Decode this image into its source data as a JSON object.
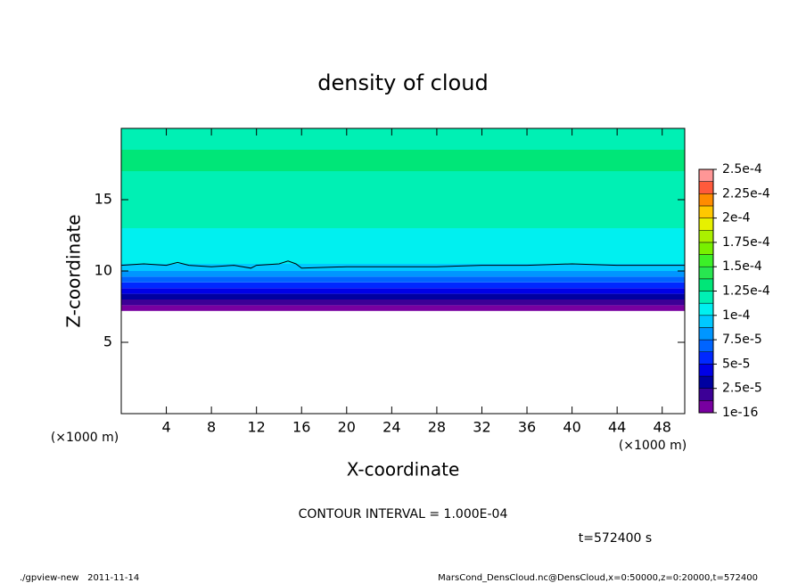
{
  "chart_data": {
    "type": "contour",
    "title": "density of cloud",
    "x_label": "X-coordinate",
    "y_label": "Z-coordinate",
    "x_unit": "(×1000 m)",
    "y_unit": "(×1000 m)",
    "xlim": [
      0,
      50
    ],
    "ylim": [
      0,
      20
    ],
    "xticks": [
      4,
      8,
      12,
      16,
      20,
      24,
      28,
      32,
      36,
      40,
      44,
      48
    ],
    "yticks": [
      5,
      10,
      15
    ],
    "z": [
      7.2,
      7.6,
      8.0,
      8.4,
      8.8,
      9.2,
      9.6,
      10.0,
      10.5,
      11.5,
      13,
      14,
      17,
      18.5
    ],
    "values": [
      5e-06,
      1.5e-05,
      3e-05,
      4.2e-05,
      5.5e-05,
      6.8e-05,
      8e-05,
      9.3e-05,
      0.000103,
      0.000108,
      0.000115,
      0.00012,
      0.000128,
      0.000122
    ],
    "contour": {
      "x": [
        0,
        2,
        4,
        5,
        5.5,
        6,
        8,
        10,
        11.5,
        12,
        14,
        14.8,
        15.5,
        16,
        20,
        24,
        28,
        32,
        36,
        40,
        44,
        48,
        50
      ],
      "z": [
        10.4,
        10.5,
        10.4,
        10.6,
        10.5,
        10.4,
        10.3,
        10.4,
        10.2,
        10.4,
        10.5,
        10.7,
        10.5,
        10.2,
        10.3,
        10.3,
        10.3,
        10.4,
        10.4,
        10.5,
        10.4,
        10.4,
        10.4
      ],
      "color": "#000000"
    },
    "colorbar": {
      "lim": [
        1e-16,
        0.00025
      ],
      "ticks": [
        1e-16,
        {
          "value": 2.5e-05,
          "label": "2.5e-5"
        },
        {
          "value": 5e-05,
          "label": "5e-5"
        },
        {
          "value": 7.5e-05,
          "label": "7.5e-5"
        },
        {
          "value": 0.0001,
          "label": "1e-4"
        },
        {
          "value": 0.000125,
          "label": "1.25e-4"
        },
        {
          "value": 0.00015,
          "label": "1.5e-4"
        },
        {
          "value": 0.000175,
          "label": "1.75e-4"
        },
        {
          "value": 0.0002,
          "label": "2e-4"
        },
        {
          "value": 0.000225,
          "label": "2.25e-4"
        },
        {
          "value": 0.00025,
          "label": "2.5e-4"
        }
      ],
      "colors": [
        "#7800a0",
        "#3c0096",
        "#0000a0",
        "#0000e6",
        "#0028ff",
        "#0064ff",
        "#0096ff",
        "#00c8ff",
        "#00f0f0",
        "#00f0b4",
        "#00e678",
        "#28e650",
        "#3cf028",
        "#78f000",
        "#aaf000",
        "#e6f000",
        "#ffc800",
        "#ff8c00",
        "#ff5a3c",
        "#ff9696"
      ]
    },
    "annotation": "CONTOUR INTERVAL = 1.000E-04",
    "time_label": "t=572400 s",
    "footer_left": "./gpview-new   2011-11-14",
    "footer_right": "MarsCond_DensCloud.nc@DensCloud,x=0:50000,z=0:20000,t=572400"
  }
}
